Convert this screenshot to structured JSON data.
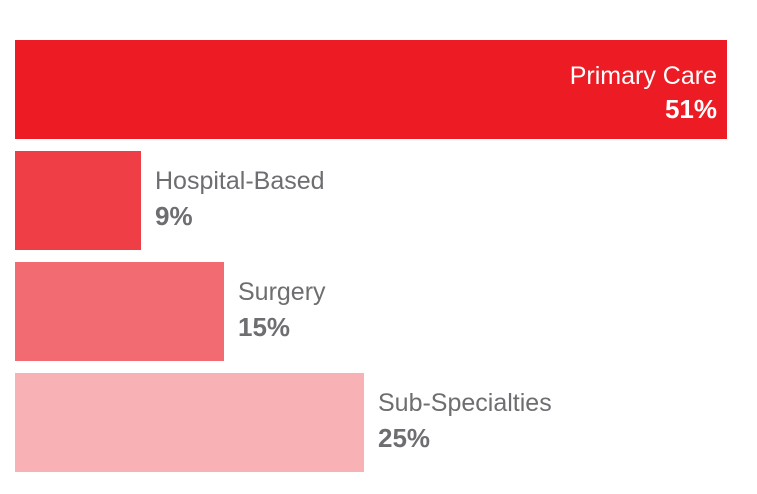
{
  "chart_data": {
    "type": "bar",
    "orientation": "horizontal",
    "title": "",
    "xlabel": "",
    "ylabel": "",
    "grid": false,
    "xlim": [
      0,
      51
    ],
    "categories": [
      "Primary Care",
      "Hospital-Based",
      "Surgery",
      "Sub-Specialties"
    ],
    "values": [
      51,
      9,
      15,
      25
    ],
    "value_labels": [
      "51%",
      "9%",
      "15%",
      "25%"
    ],
    "colors": [
      "#ed1c24",
      "#ef3e46",
      "#f26b72",
      "#f8b1b5"
    ],
    "label_colors": {
      "inside": "#ffffff",
      "outside": "#6d6e71"
    }
  }
}
